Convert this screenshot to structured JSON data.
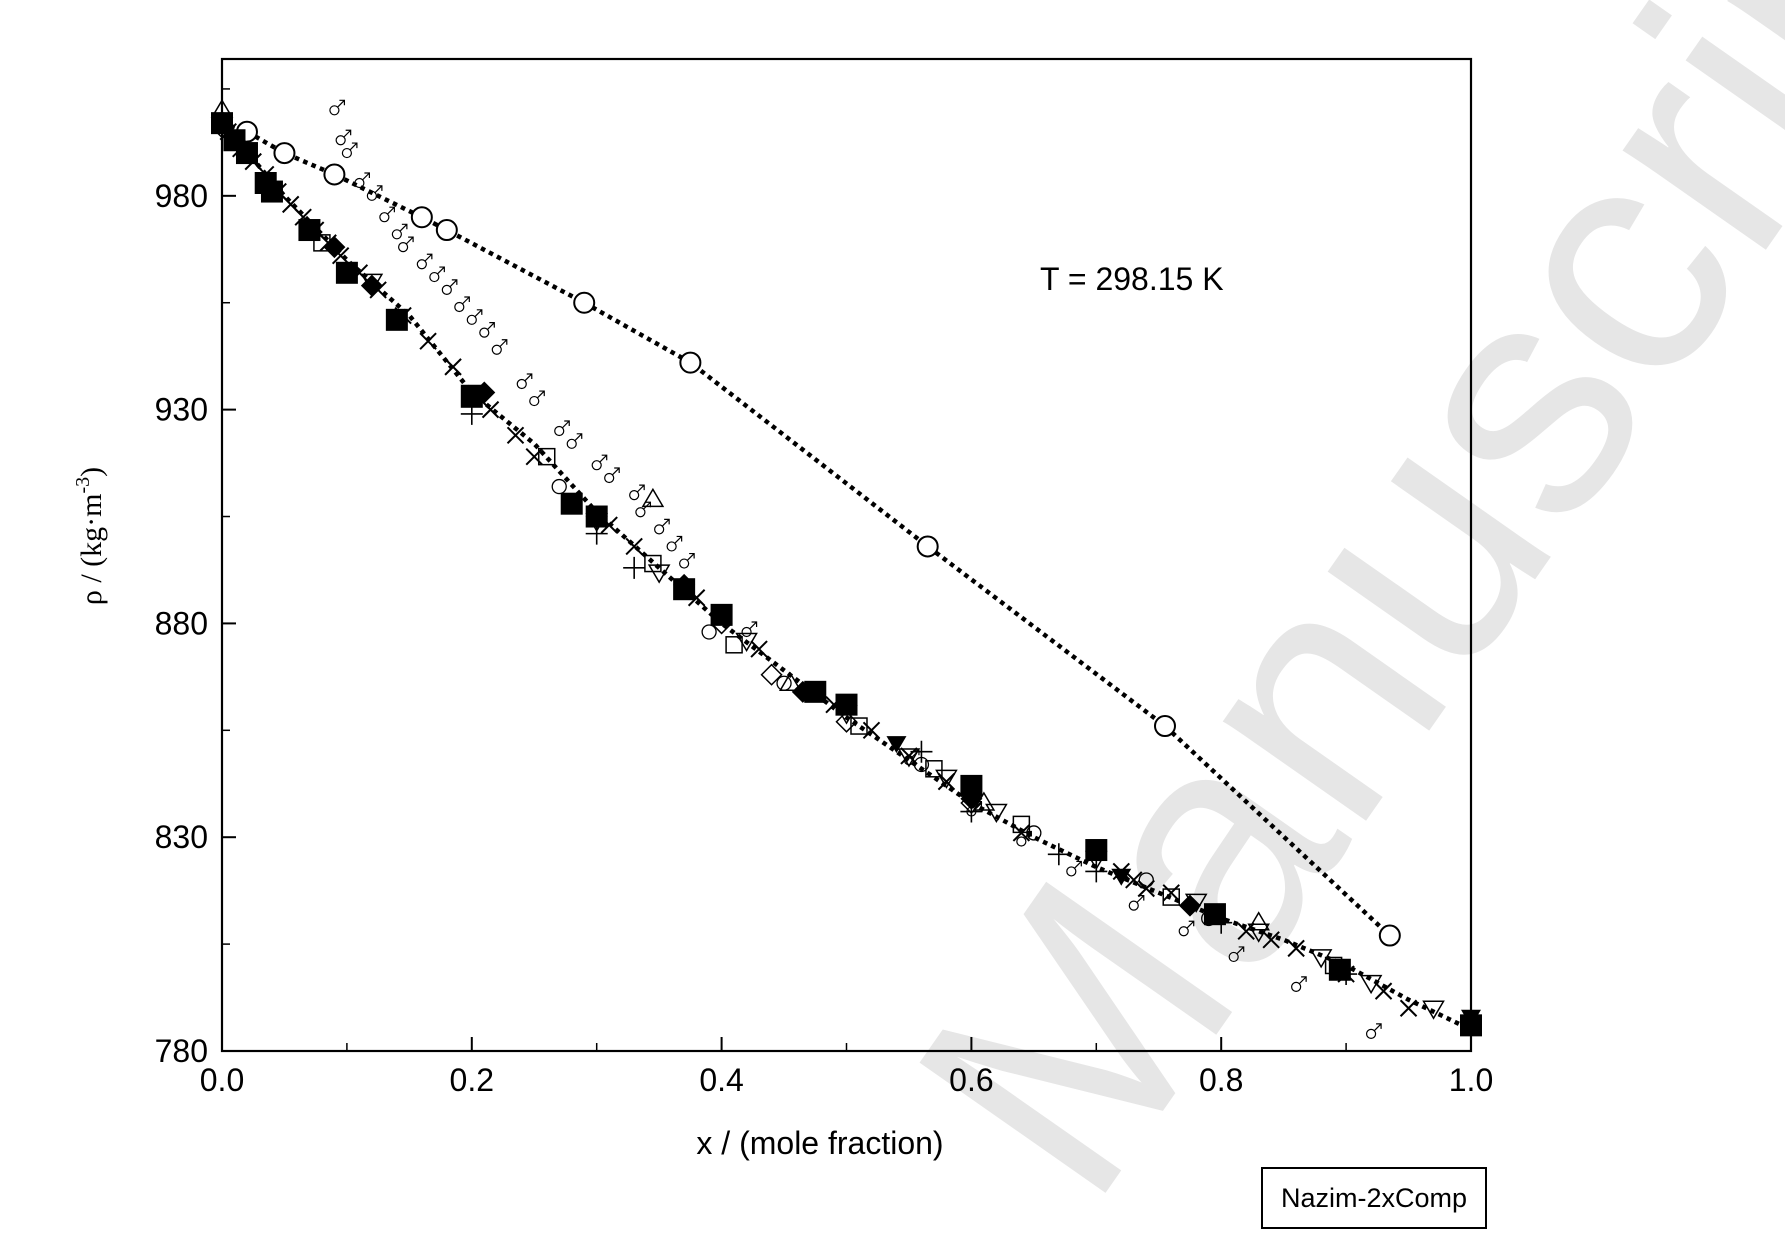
{
  "chart_data": {
    "type": "scatter",
    "title": "",
    "xlabel": "x / (mole fraction)",
    "ylabel": {
      "main": "ρ / (kg·m",
      "sup": "-3",
      "close": ")"
    },
    "xlim": [
      0,
      1
    ],
    "ylim": [
      780,
      1012
    ],
    "xticks": [
      {
        "v": 0,
        "label": "0.0"
      },
      {
        "v": 0.2,
        "label": "0.2"
      },
      {
        "v": 0.4,
        "label": "0.4"
      },
      {
        "v": 0.6,
        "label": "0.6"
      },
      {
        "v": 0.8,
        "label": "0.8"
      },
      {
        "v": 1.0,
        "label": "1.0"
      }
    ],
    "yticks": [
      {
        "v": 780,
        "label": "780"
      },
      {
        "v": 830,
        "label": "830"
      },
      {
        "v": 880,
        "label": "880"
      },
      {
        "v": 930,
        "label": "930"
      },
      {
        "v": 980,
        "label": "980"
      }
    ],
    "x_minor": [
      0.1,
      0.3,
      0.5,
      0.7,
      0.9
    ],
    "y_minor": [
      805,
      855,
      905,
      955,
      1005
    ],
    "grid": false,
    "annotation": "T = 298.15 K",
    "tag": "Nazim-2xComp",
    "watermark": "Manuscript",
    "series": [
      {
        "marker": "open-circle-large",
        "line": "dotted",
        "points": [
          [
            0.0,
            997
          ],
          [
            0.02,
            995
          ],
          [
            0.05,
            990
          ],
          [
            0.09,
            985
          ],
          [
            0.16,
            975
          ],
          [
            0.18,
            972
          ],
          [
            0.29,
            955
          ],
          [
            0.375,
            941
          ],
          [
            0.565,
            898
          ],
          [
            0.755,
            856
          ],
          [
            0.935,
            807
          ]
        ]
      },
      {
        "marker": "fit-curve",
        "line": "dotted",
        "points": [
          [
            0.0,
            997
          ],
          [
            0.05,
            980
          ],
          [
            0.1,
            965
          ],
          [
            0.15,
            952
          ],
          [
            0.2,
            934
          ],
          [
            0.25,
            922
          ],
          [
            0.3,
            906
          ],
          [
            0.35,
            893
          ],
          [
            0.4,
            880
          ],
          [
            0.45,
            869
          ],
          [
            0.5,
            858
          ],
          [
            0.55,
            848
          ],
          [
            0.6,
            838
          ],
          [
            0.65,
            830
          ],
          [
            0.7,
            823
          ],
          [
            0.75,
            817
          ],
          [
            0.8,
            811
          ],
          [
            0.85,
            806
          ],
          [
            0.9,
            800
          ],
          [
            0.95,
            792
          ],
          [
            1.0,
            785
          ]
        ]
      },
      {
        "marker": "filled-square",
        "points": [
          [
            0.0,
            997
          ],
          [
            0.01,
            993
          ],
          [
            0.02,
            990
          ],
          [
            0.035,
            983
          ],
          [
            0.04,
            981
          ],
          [
            0.07,
            972
          ],
          [
            0.1,
            962
          ],
          [
            0.14,
            951
          ],
          [
            0.2,
            933
          ],
          [
            0.28,
            908
          ],
          [
            0.3,
            905
          ],
          [
            0.37,
            888
          ],
          [
            0.4,
            882
          ],
          [
            0.475,
            864
          ],
          [
            0.5,
            861
          ],
          [
            0.6,
            842
          ],
          [
            0.7,
            827
          ],
          [
            0.795,
            812
          ],
          [
            0.895,
            799
          ],
          [
            1.0,
            786
          ]
        ]
      },
      {
        "marker": "x-cross",
        "points": [
          [
            0.005,
            995
          ],
          [
            0.015,
            991
          ],
          [
            0.025,
            988
          ],
          [
            0.035,
            985
          ],
          [
            0.045,
            981
          ],
          [
            0.055,
            978
          ],
          [
            0.065,
            975
          ],
          [
            0.075,
            972
          ],
          [
            0.085,
            969
          ],
          [
            0.095,
            966
          ],
          [
            0.11,
            962
          ],
          [
            0.125,
            958
          ],
          [
            0.145,
            952
          ],
          [
            0.165,
            946
          ],
          [
            0.185,
            940
          ],
          [
            0.215,
            930
          ],
          [
            0.235,
            924
          ],
          [
            0.25,
            919
          ],
          [
            0.31,
            903
          ],
          [
            0.33,
            898
          ],
          [
            0.38,
            886
          ],
          [
            0.43,
            874
          ],
          [
            0.49,
            861
          ],
          [
            0.52,
            855
          ],
          [
            0.55,
            849
          ],
          [
            0.58,
            843
          ],
          [
            0.64,
            831
          ],
          [
            0.72,
            822
          ],
          [
            0.73,
            820
          ],
          [
            0.74,
            818
          ],
          [
            0.76,
            817
          ],
          [
            0.82,
            808
          ],
          [
            0.84,
            806
          ],
          [
            0.86,
            804
          ],
          [
            0.9,
            798
          ],
          [
            0.93,
            794
          ],
          [
            0.95,
            790
          ]
        ]
      },
      {
        "marker": "open-triangle-down",
        "points": [
          [
            0.12,
            960
          ],
          [
            0.2,
            934
          ],
          [
            0.3,
            904
          ],
          [
            0.35,
            892
          ],
          [
            0.42,
            876
          ],
          [
            0.5,
            859
          ],
          [
            0.55,
            849
          ],
          [
            0.58,
            844
          ],
          [
            0.62,
            836
          ],
          [
            0.7,
            825
          ],
          [
            0.78,
            815
          ],
          [
            0.83,
            808
          ],
          [
            0.88,
            802
          ],
          [
            0.92,
            796
          ],
          [
            0.97,
            790
          ]
        ]
      },
      {
        "marker": "open-square",
        "points": [
          [
            0.08,
            969
          ],
          [
            0.26,
            919
          ],
          [
            0.345,
            894
          ],
          [
            0.41,
            875
          ],
          [
            0.51,
            856
          ],
          [
            0.57,
            846
          ],
          [
            0.64,
            833
          ],
          [
            0.76,
            816
          ],
          [
            0.89,
            800
          ]
        ]
      },
      {
        "marker": "open-triangle-up",
        "points": [
          [
            0.0,
            1000
          ],
          [
            0.345,
            909
          ],
          [
            0.455,
            866
          ],
          [
            0.61,
            838
          ],
          [
            0.83,
            810
          ]
        ]
      },
      {
        "marker": "open-diamond",
        "points": [
          [
            0.0,
            996
          ],
          [
            0.3,
            905
          ],
          [
            0.4,
            880
          ],
          [
            0.44,
            868
          ],
          [
            0.5,
            857
          ],
          [
            0.6,
            838
          ]
        ]
      },
      {
        "marker": "filled-diamond",
        "points": [
          [
            0.09,
            968
          ],
          [
            0.12,
            959
          ],
          [
            0.21,
            934
          ],
          [
            0.37,
            889
          ],
          [
            0.465,
            864
          ],
          [
            0.6,
            839
          ],
          [
            0.775,
            814
          ]
        ]
      },
      {
        "marker": "filled-triangle-down",
        "points": [
          [
            0.54,
            852
          ],
          [
            0.72,
            821
          ],
          [
            1.0,
            788
          ]
        ]
      },
      {
        "marker": "cross-plus",
        "points": [
          [
            0.2,
            929
          ],
          [
            0.3,
            901
          ],
          [
            0.33,
            893
          ],
          [
            0.56,
            850
          ],
          [
            0.6,
            836
          ],
          [
            0.67,
            826
          ],
          [
            0.7,
            822
          ],
          [
            0.8,
            810
          ],
          [
            0.9,
            798
          ]
        ]
      },
      {
        "marker": "male-symbol",
        "points": [
          [
            0.09,
            1000
          ],
          [
            0.095,
            993
          ],
          [
            0.1,
            990
          ],
          [
            0.11,
            983
          ],
          [
            0.12,
            980
          ],
          [
            0.13,
            975
          ],
          [
            0.14,
            971
          ],
          [
            0.145,
            968
          ],
          [
            0.16,
            964
          ],
          [
            0.17,
            961
          ],
          [
            0.18,
            958
          ],
          [
            0.19,
            954
          ],
          [
            0.2,
            951
          ],
          [
            0.21,
            948
          ],
          [
            0.22,
            944
          ],
          [
            0.24,
            936
          ],
          [
            0.25,
            932
          ],
          [
            0.27,
            925
          ],
          [
            0.28,
            922
          ],
          [
            0.3,
            917
          ],
          [
            0.31,
            914
          ],
          [
            0.33,
            910
          ],
          [
            0.335,
            906
          ],
          [
            0.35,
            902
          ],
          [
            0.36,
            898
          ],
          [
            0.37,
            894
          ],
          [
            0.42,
            878
          ],
          [
            0.55,
            848
          ],
          [
            0.6,
            836
          ],
          [
            0.64,
            829
          ],
          [
            0.68,
            822
          ],
          [
            0.73,
            814
          ],
          [
            0.77,
            808
          ],
          [
            0.81,
            802
          ],
          [
            0.86,
            795
          ],
          [
            0.92,
            784
          ]
        ]
      },
      {
        "marker": "open-circle-small",
        "points": [
          [
            0.27,
            912
          ],
          [
            0.39,
            878
          ],
          [
            0.45,
            866
          ],
          [
            0.56,
            847
          ],
          [
            0.65,
            831
          ],
          [
            0.74,
            820
          ],
          [
            0.79,
            811
          ]
        ]
      }
    ]
  }
}
